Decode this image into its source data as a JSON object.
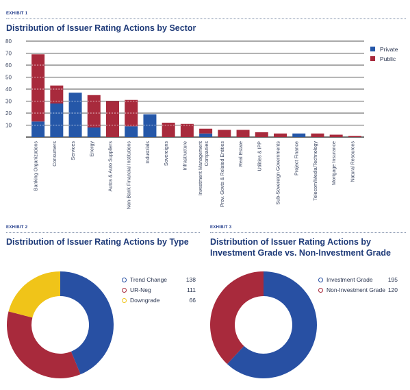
{
  "exhibit1": {
    "tag": "EXHIBIT 1",
    "title": "Distribution of Issuer Rating Actions by Sector"
  },
  "exhibit2": {
    "tag": "EXHIBIT 2",
    "title": "Distribution of Issuer Rating Actions by Type"
  },
  "exhibit3": {
    "tag": "EXHIBIT 3",
    "title": "Distribution of Issuer Rating Actions by Investment Grade vs. Non-Investment Grade"
  },
  "colors": {
    "private": "#2557a8",
    "public": "#a82a3c",
    "trend": "#2850a3",
    "urneg": "#a82a3c",
    "downgrade": "#f0c419",
    "navy": "#1e3a78"
  },
  "chart_data": [
    {
      "type": "bar",
      "stacked": true,
      "title": "Distribution of Issuer Rating Actions by Sector",
      "categories": [
        "Banking Organizations",
        "Consumers",
        "Services",
        "Energy",
        "Autos & Auto Suppliers",
        "Non-Bank Financial Institutions",
        "Industrials",
        "Sovereigns",
        "Infrastructure",
        "Investment Management Companies",
        "Prov. Govts & Related Entities",
        "Real Estate",
        "Utilities & IPP",
        "Sub-Sovereign Governments",
        "Project Finance",
        "Telecom/Media/Technology",
        "Mortgage Insurance",
        "Natural Resources"
      ],
      "series": [
        {
          "name": "Private",
          "values": [
            13,
            28,
            37,
            8,
            0,
            9,
            19,
            0,
            0,
            3,
            0,
            0,
            0,
            0,
            3,
            0,
            0,
            0
          ]
        },
        {
          "name": "Public",
          "values": [
            56,
            15,
            0,
            27,
            30,
            22,
            0,
            12,
            11,
            4,
            6,
            6,
            4,
            3,
            0,
            3,
            2,
            1
          ]
        }
      ],
      "ylim": [
        0,
        80
      ],
      "yticks": [
        10,
        20,
        30,
        40,
        50,
        60,
        70,
        80
      ],
      "xlabel": "",
      "ylabel": "",
      "grid": true,
      "legend": "top-right"
    },
    {
      "type": "pie",
      "donut": true,
      "title": "Distribution of Issuer Rating Actions by Type",
      "labels": [
        "Trend Change",
        "UR-Neg",
        "Downgrade"
      ],
      "values": [
        138,
        111,
        66
      ],
      "legend": "right"
    },
    {
      "type": "pie",
      "donut": true,
      "title": "Distribution of Issuer Rating Actions by Investment Grade vs. Non-Investment Grade",
      "labels": [
        "Investment Grade",
        "Non-Investment Grade"
      ],
      "values": [
        195,
        120
      ],
      "legend": "right"
    }
  ]
}
